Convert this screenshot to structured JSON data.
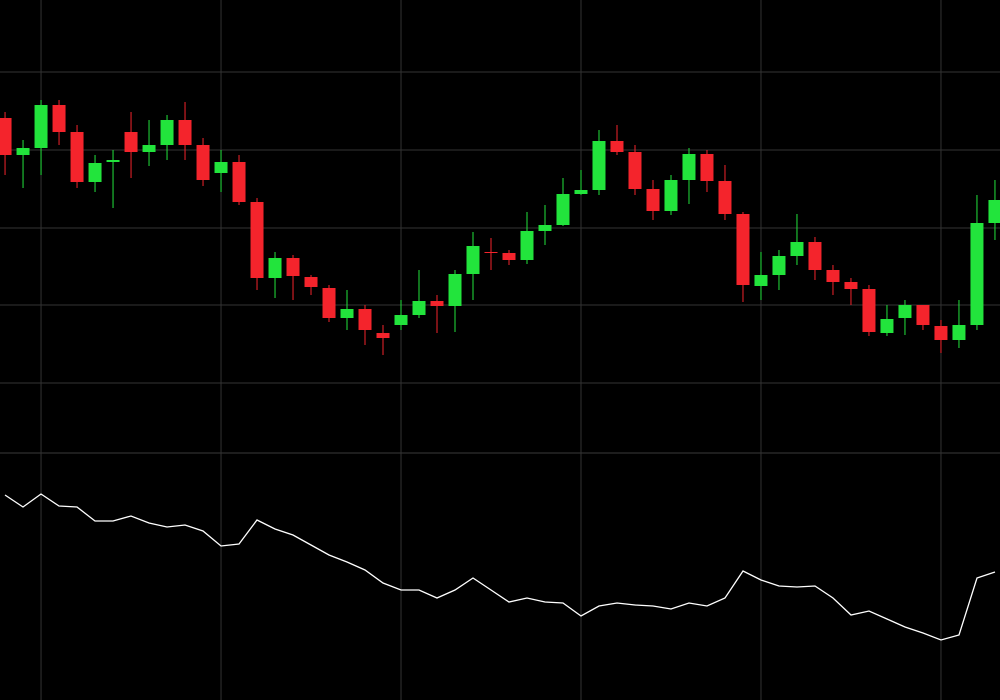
{
  "chart_data": [
    {
      "type": "candlestick",
      "x": [
        0,
        1,
        2,
        3,
        4,
        5,
        6,
        7,
        8,
        9,
        10,
        11,
        12,
        13,
        14,
        15,
        16,
        17,
        18,
        19,
        20,
        21,
        22,
        23,
        24,
        25,
        26,
        27,
        28,
        29,
        30,
        31,
        32,
        33,
        34,
        35,
        36,
        37,
        38,
        39,
        40,
        41,
        42,
        43,
        44,
        45,
        46,
        47,
        48,
        49,
        50,
        51,
        52,
        53,
        54,
        55
      ],
      "open": [
        343,
        306,
        313,
        356,
        329,
        279,
        299,
        329,
        309,
        316,
        341,
        316,
        288,
        299,
        259,
        183,
        203,
        184,
        173,
        143,
        152,
        128,
        136,
        146,
        160,
        155,
        187,
        209,
        208,
        201,
        230,
        236,
        267,
        271,
        320,
        309,
        272,
        250,
        281,
        307,
        280,
        247,
        175,
        186,
        205,
        219,
        191,
        179,
        172,
        128,
        143,
        156,
        135,
        121,
        136,
        238
      ],
      "high": [
        349,
        321,
        361,
        361,
        336,
        306,
        311,
        349,
        341,
        346,
        359,
        323,
        311,
        306,
        263,
        209,
        206,
        186,
        176,
        171,
        156,
        136,
        161,
        191,
        166,
        191,
        229,
        223,
        211,
        249,
        256,
        283,
        291,
        331,
        336,
        316,
        281,
        286,
        313,
        311,
        296,
        249,
        209,
        211,
        247,
        224,
        196,
        183,
        176,
        156,
        161,
        156,
        141,
        161,
        266,
        281
      ],
      "low": [
        286,
        273,
        286,
        316,
        273,
        269,
        253,
        283,
        295,
        301,
        301,
        275,
        269,
        256,
        171,
        163,
        161,
        166,
        139,
        131,
        116,
        106,
        131,
        143,
        128,
        129,
        161,
        191,
        196,
        197,
        216,
        235,
        266,
        266,
        306,
        266,
        241,
        246,
        257,
        269,
        241,
        159,
        161,
        171,
        196,
        181,
        166,
        156,
        125,
        125,
        126,
        131,
        108,
        113,
        131,
        221
      ],
      "close": [
        306,
        313,
        356,
        329,
        279,
        298,
        301,
        309,
        316,
        341,
        316,
        281,
        299,
        259,
        183,
        203,
        185,
        174,
        143,
        152,
        131,
        123,
        146,
        160,
        155,
        187,
        215,
        208,
        201,
        230,
        236,
        267,
        271,
        320,
        309,
        272,
        250,
        281,
        307,
        280,
        247,
        176,
        186,
        205,
        219,
        191,
        179,
        172,
        129,
        142,
        156,
        136,
        121,
        136,
        238,
        261
      ],
      "up_color": "#22e43c",
      "down_color": "#f4242c",
      "xlim": [
        -0.28,
        55.28
      ],
      "xticks": [
        2,
        12,
        22,
        32,
        42,
        52
      ],
      "ylim": [
        8,
        461
      ],
      "yticks": [
        78,
        156,
        233,
        311,
        389
      ],
      "grid": true
    },
    {
      "type": "line",
      "x": [
        0,
        1,
        2,
        3,
        4,
        5,
        6,
        7,
        8,
        9,
        10,
        11,
        12,
        13,
        14,
        15,
        16,
        17,
        18,
        19,
        20,
        21,
        22,
        23,
        24,
        25,
        26,
        27,
        28,
        29,
        30,
        31,
        32,
        33,
        34,
        35,
        36,
        37,
        38,
        39,
        40,
        41,
        42,
        43,
        44,
        45,
        46,
        47,
        48,
        49,
        50,
        51,
        52,
        53,
        54,
        55
      ],
      "values": [
        205,
        193,
        206,
        194,
        193,
        179,
        179,
        184,
        177,
        173,
        175,
        169,
        154,
        156,
        180,
        171,
        165,
        155,
        145,
        138,
        130,
        117,
        110,
        110,
        102,
        110,
        122,
        110,
        98,
        102,
        98,
        97,
        84,
        94,
        97,
        95,
        94,
        91,
        97,
        94,
        102,
        129,
        120,
        114,
        113,
        114,
        102,
        85,
        89,
        81,
        73,
        67,
        60,
        65,
        122,
        128
      ],
      "color": "#ffffff",
      "xlim": [
        -0.28,
        55.28
      ],
      "xticks": [
        2,
        12,
        22,
        32,
        42,
        52
      ],
      "ylim": [
        0,
        247
      ],
      "grid": true
    }
  ]
}
